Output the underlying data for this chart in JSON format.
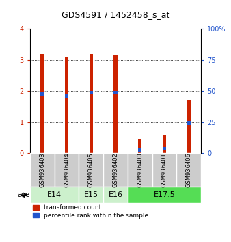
{
  "title": "GDS4591 / 1452458_s_at",
  "samples": [
    "GSM936403",
    "GSM936404",
    "GSM936405",
    "GSM936402",
    "GSM936400",
    "GSM936401",
    "GSM936406"
  ],
  "red_values": [
    3.2,
    3.1,
    3.2,
    3.15,
    0.48,
    0.58,
    1.72
  ],
  "blue_values": [
    1.92,
    1.85,
    1.95,
    1.95,
    0.12,
    0.15,
    0.98
  ],
  "ylim_left": [
    0,
    4
  ],
  "ylim_right": [
    0,
    100
  ],
  "yticks_left": [
    0,
    1,
    2,
    3,
    4
  ],
  "yticks_right": [
    0,
    25,
    50,
    75,
    100
  ],
  "red_color": "#cc2200",
  "blue_color": "#2255cc",
  "bar_width": 0.14,
  "blue_bar_height": 0.12,
  "legend_red": "transformed count",
  "legend_blue": "percentile rank within the sample",
  "age_info": [
    {
      "label": "E14",
      "start": 0,
      "end": 2,
      "color": "#ccf0cc"
    },
    {
      "label": "E15",
      "start": 2,
      "end": 3,
      "color": "#ccf0cc"
    },
    {
      "label": "E16",
      "start": 3,
      "end": 4,
      "color": "#ccf0cc"
    },
    {
      "label": "E17.5",
      "start": 4,
      "end": 7,
      "color": "#55dd55"
    }
  ],
  "sample_box_color": "#cccccc",
  "age_label_text": "age",
  "title_fontsize": 9,
  "tick_fontsize": 7,
  "sample_fontsize": 6,
  "age_fontsize": 8
}
